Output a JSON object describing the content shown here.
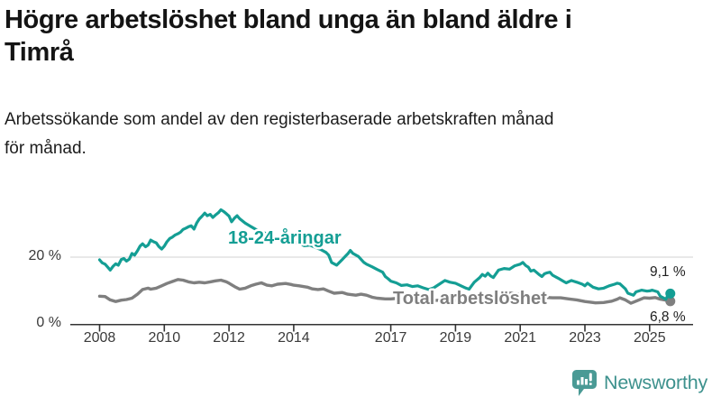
{
  "header": {
    "title_lines": [
      "Högre arbetslöshet bland unga än bland äldre i",
      "Timrå"
    ],
    "subtitle_lines": [
      "Arbetssökande som andel av den registerbaserade arbetskraften månad",
      "för månad."
    ]
  },
  "footer": {
    "brand": "Newsworthy",
    "logo_icon": "bar-chart-speech-bubble-icon"
  },
  "colors": {
    "youth": "#149e94",
    "total": "#7f7f7f",
    "grid": "#dcdcdc",
    "axis": "#333333",
    "text": "#1f1f1f",
    "brand": "#3d918d",
    "brand_icon": "#4a9a95"
  },
  "chart_data": {
    "type": "line",
    "title": "Högre arbetslöshet bland unga än bland äldre i Timrå",
    "subtitle": "Arbetssökande som andel av den registerbaserade arbetskraften månad för månad.",
    "unit": "%",
    "grid": "horizontal-only",
    "legend_position": "inline-labels-on-lines",
    "x_axis": {
      "range": [
        2007.1,
        2026.3
      ],
      "ticks": [
        {
          "year": 2008,
          "label": "2008"
        },
        {
          "year": 2010,
          "label": "2010"
        },
        {
          "year": 2012,
          "label": "2012"
        },
        {
          "year": 2014,
          "label": "2014"
        },
        {
          "year": 2017,
          "label": "2017"
        },
        {
          "year": 2019,
          "label": "2019"
        },
        {
          "year": 2021,
          "label": "2021"
        },
        {
          "year": 2023,
          "label": "2023"
        },
        {
          "year": 2025,
          "label": "2025"
        }
      ]
    },
    "y_axis": {
      "range": [
        0,
        42
      ],
      "ticks": [
        {
          "value": 0,
          "label": "0 %"
        },
        {
          "value": 20,
          "label": "20 %"
        }
      ]
    },
    "series": [
      {
        "name": "18-24-åringar",
        "color": "#149e94",
        "end_value": 9.1,
        "end_label": "9,1 %",
        "points": [
          [
            2008.0,
            19.2
          ],
          [
            2008.08,
            18.3
          ],
          [
            2008.17,
            17.9
          ],
          [
            2008.25,
            17.0
          ],
          [
            2008.33,
            16.1
          ],
          [
            2008.42,
            17.3
          ],
          [
            2008.5,
            18.0
          ],
          [
            2008.58,
            17.6
          ],
          [
            2008.67,
            19.3
          ],
          [
            2008.75,
            19.6
          ],
          [
            2008.83,
            18.8
          ],
          [
            2008.92,
            19.4
          ],
          [
            2009.0,
            21.1
          ],
          [
            2009.08,
            20.6
          ],
          [
            2009.17,
            21.9
          ],
          [
            2009.25,
            23.3
          ],
          [
            2009.33,
            24.0
          ],
          [
            2009.42,
            23.1
          ],
          [
            2009.5,
            23.6
          ],
          [
            2009.58,
            25.1
          ],
          [
            2009.67,
            24.6
          ],
          [
            2009.75,
            24.3
          ],
          [
            2009.83,
            23.2
          ],
          [
            2009.92,
            22.4
          ],
          [
            2010.0,
            23.3
          ],
          [
            2010.08,
            24.6
          ],
          [
            2010.17,
            25.6
          ],
          [
            2010.25,
            26.0
          ],
          [
            2010.33,
            26.6
          ],
          [
            2010.42,
            27.0
          ],
          [
            2010.5,
            27.5
          ],
          [
            2010.58,
            28.3
          ],
          [
            2010.67,
            28.7
          ],
          [
            2010.75,
            29.1
          ],
          [
            2010.83,
            29.4
          ],
          [
            2010.92,
            28.4
          ],
          [
            2011.0,
            30.2
          ],
          [
            2011.08,
            31.4
          ],
          [
            2011.17,
            32.3
          ],
          [
            2011.25,
            33.2
          ],
          [
            2011.33,
            32.4
          ],
          [
            2011.42,
            32.8
          ],
          [
            2011.5,
            31.9
          ],
          [
            2011.58,
            32.6
          ],
          [
            2011.67,
            33.3
          ],
          [
            2011.75,
            34.2
          ],
          [
            2011.83,
            33.7
          ],
          [
            2011.92,
            33.0
          ],
          [
            2012.0,
            32.3
          ],
          [
            2012.08,
            30.6
          ],
          [
            2012.17,
            31.7
          ],
          [
            2012.25,
            32.4
          ],
          [
            2012.33,
            31.5
          ],
          [
            2012.5,
            30.2
          ],
          [
            2012.67,
            29.2
          ],
          [
            2012.83,
            28.3
          ],
          [
            2013.0,
            27.6
          ],
          [
            2013.17,
            27.0
          ],
          [
            2013.33,
            26.2
          ],
          [
            2013.5,
            25.6
          ],
          [
            2013.67,
            25.1
          ],
          [
            2013.83,
            24.7
          ],
          [
            2014.0,
            24.5
          ],
          [
            2014.17,
            24.2
          ],
          [
            2014.33,
            23.4
          ],
          [
            2014.5,
            23.6
          ],
          [
            2014.67,
            22.9
          ],
          [
            2014.83,
            22.3
          ],
          [
            2015.0,
            21.4
          ],
          [
            2015.08,
            20.6
          ],
          [
            2015.17,
            18.4
          ],
          [
            2015.33,
            17.6
          ],
          [
            2015.5,
            19.3
          ],
          [
            2015.67,
            21.0
          ],
          [
            2015.75,
            22.0
          ],
          [
            2015.83,
            21.1
          ],
          [
            2016.0,
            20.2
          ],
          [
            2016.17,
            18.4
          ],
          [
            2016.25,
            17.9
          ],
          [
            2016.42,
            17.1
          ],
          [
            2016.58,
            16.3
          ],
          [
            2016.75,
            15.5
          ],
          [
            2016.83,
            14.2
          ],
          [
            2016.92,
            13.5
          ],
          [
            2017.0,
            12.8
          ],
          [
            2017.17,
            12.3
          ],
          [
            2017.33,
            11.5
          ],
          [
            2017.5,
            11.7
          ],
          [
            2017.67,
            11.2
          ],
          [
            2017.83,
            11.4
          ],
          [
            2018.0,
            10.8
          ],
          [
            2018.17,
            10.3
          ],
          [
            2018.33,
            10.8
          ],
          [
            2018.5,
            11.9
          ],
          [
            2018.67,
            13.0
          ],
          [
            2018.83,
            12.5
          ],
          [
            2019.0,
            12.2
          ],
          [
            2019.17,
            11.4
          ],
          [
            2019.33,
            10.7
          ],
          [
            2019.42,
            10.4
          ],
          [
            2019.58,
            12.5
          ],
          [
            2019.75,
            13.9
          ],
          [
            2019.83,
            14.8
          ],
          [
            2019.92,
            14.3
          ],
          [
            2020.0,
            15.2
          ],
          [
            2020.08,
            14.4
          ],
          [
            2020.17,
            13.9
          ],
          [
            2020.33,
            16.1
          ],
          [
            2020.5,
            16.6
          ],
          [
            2020.67,
            16.4
          ],
          [
            2020.83,
            17.4
          ],
          [
            2021.0,
            17.9
          ],
          [
            2021.08,
            18.4
          ],
          [
            2021.17,
            17.5
          ],
          [
            2021.25,
            17.0
          ],
          [
            2021.33,
            15.8
          ],
          [
            2021.42,
            16.1
          ],
          [
            2021.5,
            15.5
          ],
          [
            2021.58,
            14.8
          ],
          [
            2021.67,
            14.2
          ],
          [
            2021.75,
            15.0
          ],
          [
            2021.83,
            15.3
          ],
          [
            2021.92,
            15.5
          ],
          [
            2022.0,
            14.6
          ],
          [
            2022.17,
            13.7
          ],
          [
            2022.33,
            12.8
          ],
          [
            2022.42,
            12.3
          ],
          [
            2022.58,
            13.0
          ],
          [
            2022.75,
            12.5
          ],
          [
            2022.92,
            11.9
          ],
          [
            2023.0,
            11.4
          ],
          [
            2023.08,
            12.2
          ],
          [
            2023.25,
            11.0
          ],
          [
            2023.42,
            10.5
          ],
          [
            2023.58,
            10.7
          ],
          [
            2023.75,
            11.4
          ],
          [
            2023.92,
            11.9
          ],
          [
            2024.0,
            12.2
          ],
          [
            2024.08,
            12.0
          ],
          [
            2024.25,
            10.5
          ],
          [
            2024.33,
            9.2
          ],
          [
            2024.5,
            8.6
          ],
          [
            2024.58,
            9.6
          ],
          [
            2024.75,
            10.1
          ],
          [
            2024.92,
            9.8
          ],
          [
            2025.0,
            9.9
          ],
          [
            2025.08,
            10.1
          ],
          [
            2025.25,
            9.6
          ],
          [
            2025.33,
            8.3
          ],
          [
            2025.5,
            7.4
          ],
          [
            2025.58,
            8.8
          ],
          [
            2025.64,
            9.1
          ]
        ]
      },
      {
        "name": "Total arbetslöshet",
        "color": "#7f7f7f",
        "end_value": 6.8,
        "end_label": "6,8 %",
        "points": [
          [
            2008.0,
            8.3
          ],
          [
            2008.17,
            8.2
          ],
          [
            2008.33,
            7.2
          ],
          [
            2008.5,
            6.7
          ],
          [
            2008.67,
            7.1
          ],
          [
            2008.83,
            7.3
          ],
          [
            2009.0,
            7.7
          ],
          [
            2009.17,
            8.9
          ],
          [
            2009.33,
            10.3
          ],
          [
            2009.5,
            10.7
          ],
          [
            2009.58,
            10.4
          ],
          [
            2009.75,
            10.7
          ],
          [
            2009.92,
            11.4
          ],
          [
            2010.08,
            12.1
          ],
          [
            2010.25,
            12.7
          ],
          [
            2010.42,
            13.3
          ],
          [
            2010.58,
            13.1
          ],
          [
            2010.75,
            12.6
          ],
          [
            2010.92,
            12.3
          ],
          [
            2011.08,
            12.5
          ],
          [
            2011.25,
            12.3
          ],
          [
            2011.42,
            12.6
          ],
          [
            2011.58,
            12.9
          ],
          [
            2011.75,
            13.1
          ],
          [
            2011.92,
            12.6
          ],
          [
            2012.0,
            12.2
          ],
          [
            2012.17,
            11.2
          ],
          [
            2012.33,
            10.4
          ],
          [
            2012.5,
            10.7
          ],
          [
            2012.67,
            11.4
          ],
          [
            2012.83,
            11.9
          ],
          [
            2013.0,
            12.3
          ],
          [
            2013.17,
            11.6
          ],
          [
            2013.33,
            11.4
          ],
          [
            2013.5,
            11.9
          ],
          [
            2013.75,
            12.1
          ],
          [
            2013.92,
            11.8
          ],
          [
            2014.0,
            11.6
          ],
          [
            2014.17,
            11.4
          ],
          [
            2014.42,
            11.0
          ],
          [
            2014.58,
            10.5
          ],
          [
            2014.75,
            10.3
          ],
          [
            2014.92,
            10.5
          ],
          [
            2015.08,
            9.8
          ],
          [
            2015.25,
            9.2
          ],
          [
            2015.5,
            9.4
          ],
          [
            2015.67,
            8.9
          ],
          [
            2015.92,
            8.6
          ],
          [
            2016.08,
            8.9
          ],
          [
            2016.25,
            8.6
          ],
          [
            2016.42,
            8.0
          ],
          [
            2016.58,
            7.7
          ],
          [
            2016.83,
            7.5
          ],
          [
            2017.0,
            7.5
          ],
          [
            2017.25,
            7.7
          ],
          [
            2017.5,
            7.4
          ],
          [
            2017.75,
            7.2
          ],
          [
            2018.0,
            7.3
          ],
          [
            2018.33,
            7.0
          ],
          [
            2018.67,
            7.2
          ],
          [
            2019.0,
            7.0
          ],
          [
            2019.33,
            6.9
          ],
          [
            2019.67,
            7.3
          ],
          [
            2020.0,
            7.8
          ],
          [
            2020.25,
            8.8
          ],
          [
            2020.5,
            9.3
          ],
          [
            2020.75,
            9.2
          ],
          [
            2021.0,
            8.9
          ],
          [
            2021.33,
            8.4
          ],
          [
            2021.67,
            8.0
          ],
          [
            2022.0,
            7.8
          ],
          [
            2022.25,
            7.8
          ],
          [
            2022.5,
            7.5
          ],
          [
            2022.75,
            7.2
          ],
          [
            2023.0,
            6.7
          ],
          [
            2023.17,
            6.5
          ],
          [
            2023.33,
            6.3
          ],
          [
            2023.58,
            6.4
          ],
          [
            2023.83,
            6.8
          ],
          [
            2024.0,
            7.4
          ],
          [
            2024.08,
            7.8
          ],
          [
            2024.25,
            7.2
          ],
          [
            2024.42,
            6.2
          ],
          [
            2024.5,
            6.5
          ],
          [
            2024.67,
            7.2
          ],
          [
            2024.83,
            7.8
          ],
          [
            2025.0,
            7.7
          ],
          [
            2025.17,
            7.9
          ],
          [
            2025.33,
            7.4
          ],
          [
            2025.5,
            7.1
          ],
          [
            2025.64,
            6.8
          ]
        ]
      }
    ]
  }
}
